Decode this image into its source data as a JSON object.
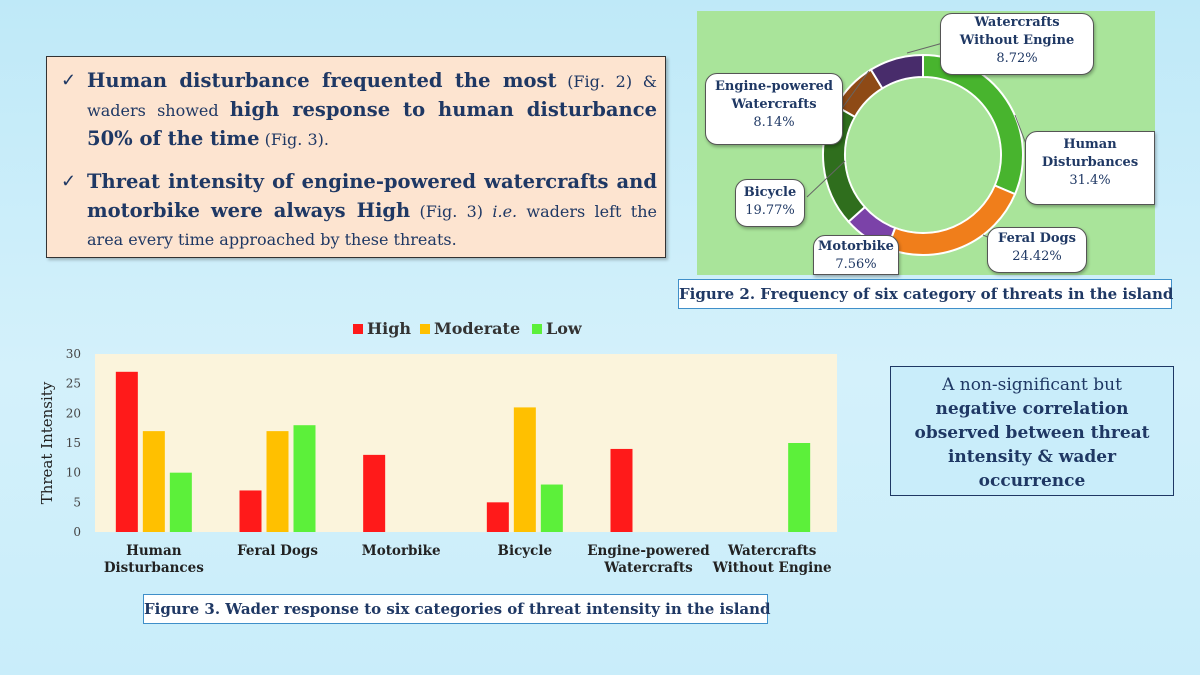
{
  "bullets": [
    {
      "segments": [
        {
          "text": "Human disturbance frequented the most",
          "style": "b"
        },
        {
          "text": " (Fig. 2) & waders showed ",
          "style": "sm"
        },
        {
          "text": "high response to human disturbance 50% of the time",
          "style": "b"
        },
        {
          "text": " (Fig. 3).",
          "style": "sm"
        }
      ]
    },
    {
      "segments": [
        {
          "text": "Threat intensity of engine-powered watercrafts and motorbike were always High",
          "style": "b"
        },
        {
          "text": " (Fig. 3) ",
          "style": "sm"
        },
        {
          "text": "i.e.",
          "style": "i"
        },
        {
          "text": " waders left the area every time approached by these threats.",
          "style": "sm"
        }
      ]
    }
  ],
  "callouts": {
    "watercrafts_without_engine": {
      "line1": "Watercrafts",
      "line2": "Without Engine",
      "pct": "8.72%"
    },
    "engine_powered": {
      "line1": "Engine-powered",
      "line2": "Watercrafts",
      "pct": "8.14%"
    },
    "human": {
      "line1": "Human",
      "line2": "Disturbances",
      "pct": "31.4%"
    },
    "bicycle": {
      "line1": "Bicycle",
      "pct": "19.77%"
    },
    "motorbike": {
      "line1": "Motorbike",
      "pct": "7.56%"
    },
    "feral_dogs": {
      "line1": "Feral Dogs",
      "pct": "24.42%"
    }
  },
  "captions": {
    "fig2": "Figure 2. Frequency of six category of threats in the island",
    "fig3": "Figure 3. Wader response to six categories of threat intensity in the island"
  },
  "note": {
    "line1": "A non-significant but",
    "line2": "negative correlation",
    "line3": "observed between threat",
    "line4": "intensity & wader",
    "line5": "occurrence"
  },
  "chart_data": [
    {
      "type": "pie",
      "style": "donut",
      "categories": [
        "Human Disturbances",
        "Feral Dogs",
        "Motorbike",
        "Bicycle",
        "Engine-powered Watercrafts",
        "Watercrafts Without Engine"
      ],
      "values": [
        31.4,
        24.42,
        7.56,
        19.77,
        8.14,
        8.72
      ],
      "colors": [
        "#48b42e",
        "#f07e1b",
        "#7b42a8",
        "#2f6e1d",
        "#8e4a16",
        "#482c6b"
      ],
      "title": "Figure 2. Frequency of six category of threats in the island"
    },
    {
      "type": "bar",
      "title": "Figure 3. Wader response to six categories of threat intensity in the island",
      "categories": [
        [
          "Human",
          "Disturbances"
        ],
        [
          "Feral Dogs"
        ],
        [
          "Motorbike"
        ],
        [
          "Bicycle"
        ],
        [
          "Engine-powered",
          "Watercrafts"
        ],
        [
          "Watercrafts",
          "Without Engine"
        ]
      ],
      "series": [
        {
          "name": "High",
          "color": "#ff1a1a",
          "values": [
            27,
            7,
            13,
            5,
            14,
            0
          ]
        },
        {
          "name": "Moderate",
          "color": "#ffc000",
          "values": [
            17,
            17,
            0,
            21,
            0,
            0
          ]
        },
        {
          "name": "Low",
          "color": "#5cf03a",
          "values": [
            10,
            18,
            0,
            8,
            0,
            15
          ]
        }
      ],
      "ylabel": "Threat Intensity",
      "xlabel": "",
      "ylim": [
        0,
        30
      ],
      "yticks": [
        0,
        5,
        10,
        15,
        20,
        25,
        30
      ],
      "legend": "top-center",
      "grid": false
    }
  ]
}
